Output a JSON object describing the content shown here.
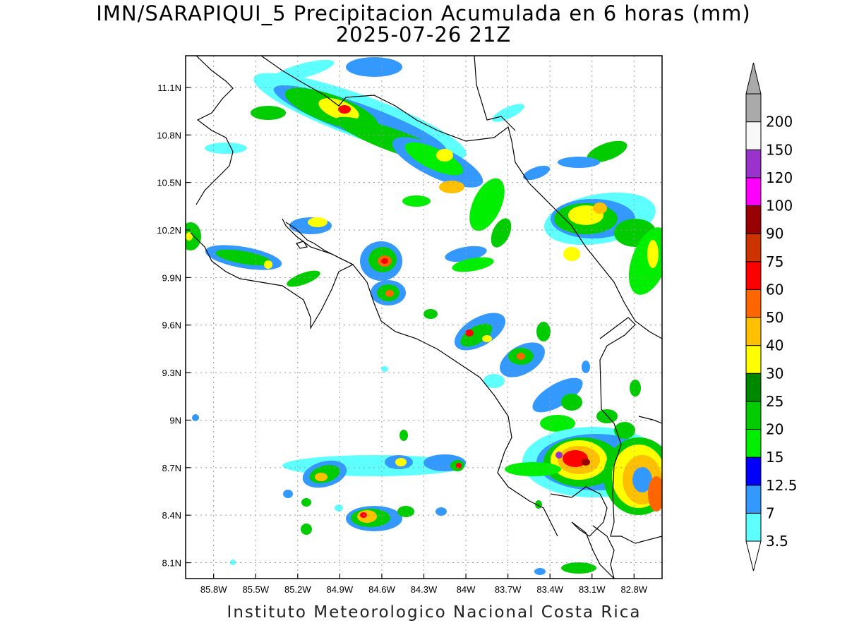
{
  "title": {
    "line1": "IMN/SARAPIQUI_5 Precipitacion Acumulada en 6 horas (mm)",
    "line2": "2025-07-26 21Z"
  },
  "footer": "Instituto Meteorologico Nacional Costa Rica",
  "map": {
    "lon_range": [
      -86.0,
      -82.6
    ],
    "lat_range": [
      8.0,
      11.3
    ],
    "lon_ticks": [
      "85.8W",
      "85.5W",
      "85.2W",
      "84.9W",
      "84.6W",
      "84.3W",
      "84W",
      "83.7W",
      "83.4W",
      "83.1W",
      "82.8W"
    ],
    "lon_tick_values": [
      -85.8,
      -85.5,
      -85.2,
      -84.9,
      -84.6,
      -84.3,
      -84.0,
      -83.7,
      -83.4,
      -83.1,
      -82.8
    ],
    "lat_ticks": [
      "11.1N",
      "10.8N",
      "10.5N",
      "10.2N",
      "9.9N",
      "9.6N",
      "9.3N",
      "9N",
      "8.7N",
      "8.4N",
      "8.1N"
    ],
    "lat_tick_values": [
      11.1,
      10.8,
      10.5,
      10.2,
      9.9,
      9.6,
      9.3,
      9.0,
      8.7,
      8.4,
      8.1
    ],
    "grid": true
  },
  "colorbar": {
    "units": "mm",
    "levels": [
      "3.5",
      "7",
      "12.5",
      "15",
      "20",
      "25",
      "30",
      "40",
      "50",
      "60",
      "75",
      "90",
      "100",
      "120",
      "150",
      "200"
    ],
    "colors": [
      "#5effff",
      "#3399ff",
      "#0000ff",
      "#00ee00",
      "#00cc00",
      "#008800",
      "#ffff00",
      "#ffc000",
      "#ff6600",
      "#ff0000",
      "#cc3300",
      "#990000",
      "#ff00ff",
      "#9933cc",
      "#f8f8f8",
      "#aaaaaa"
    ],
    "over_color": "#aaaaaa",
    "under_color": "#ffffff"
  }
}
